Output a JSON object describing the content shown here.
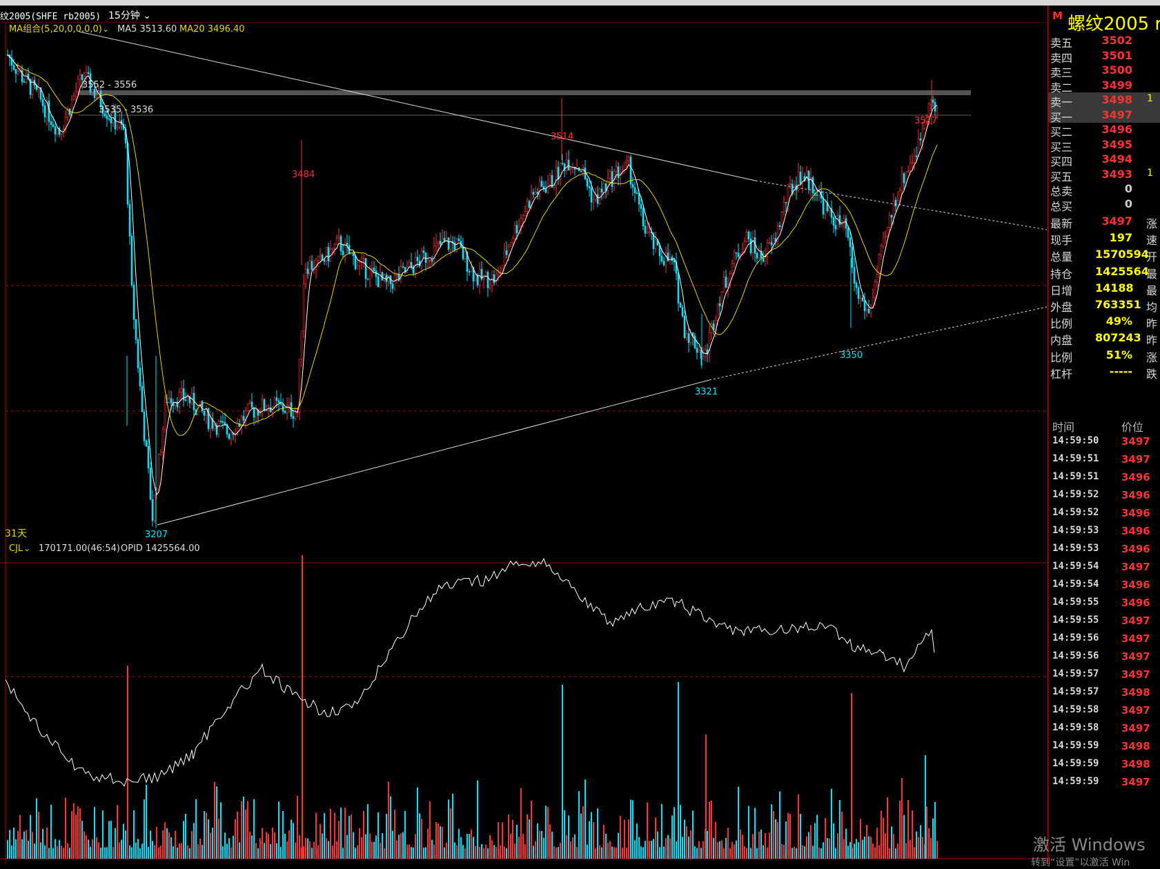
{
  "header": {
    "symbol_label": "纹2005(SHFE rb2005)",
    "period_label": "15分钟",
    "ma_label": "MA组合(5,20,0,0,0,0)",
    "ma5_label": "MA5 3513.60",
    "ma20_label": "MA20 3496.40"
  },
  "chart": {
    "days_label": "31天",
    "colors": {
      "bull": "#ff3333",
      "bear": "#00e5ff",
      "ma5": "#ffffff",
      "ma20": "#e6d800",
      "label_high": "#ff3333",
      "label_low": "#00e5ff",
      "grid": "#a01010"
    },
    "annotations": {
      "zone_high": "3552 - 3556",
      "zone_mid": "3535 - 3536",
      "peak_3514": "3514",
      "peak_3484": "3484",
      "peak_3527": "3527",
      "trough_3207": "3207",
      "trough_3321": "3321",
      "trough_3350": "3350"
    },
    "volume_header": {
      "indicator": "CJL",
      "volume_value": "170171.00(46:54)",
      "opid_value": "OPID 1425564.00"
    }
  },
  "chart_data": {
    "type": "candlestick",
    "symbol": "rb2005 (SHFE)",
    "period": "15分钟",
    "ma5_last": 3513.6,
    "ma20_last": 3496.4,
    "key_levels": {
      "highs": [
        {
          "label": "3484",
          "value": 3484
        },
        {
          "label": "3514",
          "value": 3514
        },
        {
          "label": "3527",
          "value": 3527
        }
      ],
      "lows": [
        {
          "label": "3207",
          "value": 3207
        },
        {
          "label": "3321",
          "value": 3321
        },
        {
          "label": "3350",
          "value": 3350
        }
      ],
      "zones": [
        "3552 - 3556",
        "3535 - 3536"
      ]
    },
    "volume_last": 170171.0,
    "open_interest": 1425564.0
  },
  "quote": {
    "logo": "M",
    "title": "螺纹2005  r",
    "asks": [
      {
        "label": "卖五",
        "price": "3502"
      },
      {
        "label": "卖四",
        "price": "3501"
      },
      {
        "label": "卖三",
        "price": "3500"
      },
      {
        "label": "卖二",
        "price": "3499"
      },
      {
        "label": "卖一",
        "price": "3498",
        "extra": "1"
      }
    ],
    "bids": [
      {
        "label": "买一",
        "price": "3497"
      },
      {
        "label": "买二",
        "price": "3496"
      },
      {
        "label": "买三",
        "price": "3495"
      },
      {
        "label": "买四",
        "price": "3494"
      },
      {
        "label": "买五",
        "price": "3493",
        "extra": "1"
      }
    ],
    "totals": [
      {
        "label": "总卖",
        "value": "0"
      },
      {
        "label": "总买",
        "value": "0"
      }
    ],
    "stats": [
      {
        "label": "最新",
        "value": "3497",
        "right": "涨"
      },
      {
        "label": "现手",
        "value": "197",
        "right": "速"
      },
      {
        "label": "总量",
        "value": "1570594",
        "right": "开"
      },
      {
        "label": "持仓",
        "value": "1425564",
        "right": "最"
      },
      {
        "label": "日增",
        "value": "14188",
        "right": "最"
      },
      {
        "label": "外盘",
        "value": "763351",
        "right": "均"
      },
      {
        "label": "比例",
        "value": "49%",
        "right": "昨"
      },
      {
        "label": "内盘",
        "value": "807243",
        "right": "昨"
      },
      {
        "label": "比例",
        "value": "51%",
        "right": "涨"
      },
      {
        "label": "杠杆",
        "value": "-----",
        "right": "跌"
      }
    ],
    "ticks_header": {
      "time": "时间",
      "price": "价位"
    },
    "ticks": [
      {
        "time": "14:59:50",
        "price": "3497"
      },
      {
        "time": "14:59:51",
        "price": "3497"
      },
      {
        "time": "14:59:51",
        "price": "3496"
      },
      {
        "time": "14:59:52",
        "price": "3496"
      },
      {
        "time": "14:59:52",
        "price": "3496"
      },
      {
        "time": "14:59:53",
        "price": "3496"
      },
      {
        "time": "14:59:53",
        "price": "3496"
      },
      {
        "time": "14:59:54",
        "price": "3497"
      },
      {
        "time": "14:59:54",
        "price": "3496"
      },
      {
        "time": "14:59:55",
        "price": "3496"
      },
      {
        "time": "14:59:55",
        "price": "3497"
      },
      {
        "time": "14:59:56",
        "price": "3497"
      },
      {
        "time": "14:59:56",
        "price": "3497"
      },
      {
        "time": "14:59:57",
        "price": "3497"
      },
      {
        "time": "14:59:57",
        "price": "3498"
      },
      {
        "time": "14:59:58",
        "price": "3497"
      },
      {
        "time": "14:59:58",
        "price": "3497"
      },
      {
        "time": "14:59:59",
        "price": "3498"
      },
      {
        "time": "14:59:59",
        "price": "3498"
      },
      {
        "time": "14:59:59",
        "price": "3497"
      }
    ]
  },
  "watermark": {
    "line1": "激活 Windows",
    "line2": "转到“设置”以激活 Win"
  }
}
